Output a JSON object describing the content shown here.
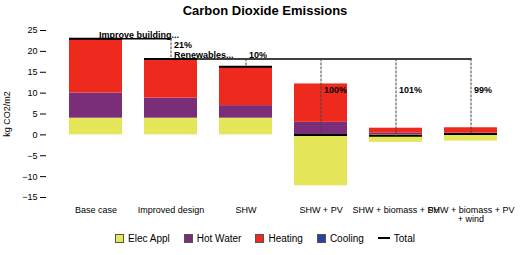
{
  "chart_data": {
    "type": "bar",
    "title": "Carbon Dioxide Emissions",
    "y_label": "kg CO2/m2",
    "categories": [
      "Base case",
      "Improved design",
      "SHW",
      "SHW + PV",
      "SHW + biomass + PV",
      "SHW + biomass + PV + wind"
    ],
    "stacked": true,
    "grid": false,
    "legend": "bottom",
    "ylim": [
      -15,
      25
    ],
    "yticks": [
      -15,
      -10,
      -5,
      0,
      5,
      10,
      15,
      20,
      25
    ],
    "series": [
      {
        "name": "Elec Appl",
        "color": "#e6e65a",
        "values": [
          4,
          4,
          4,
          -12.2,
          -1.8,
          -1.5
        ]
      },
      {
        "name": "Hot Water",
        "color": "#7a2d78",
        "values": [
          6,
          4.8,
          3,
          3,
          0.4,
          0.4
        ]
      },
      {
        "name": "Heating",
        "color": "#ee2a1e",
        "values": [
          13,
          9.4,
          9.3,
          9.2,
          1.2,
          1.3
        ]
      },
      {
        "name": "Cooling",
        "color": "#2a3f9f",
        "values": [
          0,
          0,
          0,
          0,
          0,
          0
        ]
      },
      {
        "name": "Total",
        "color": "#000000",
        "type": "scatter",
        "marker": "dash",
        "values": [
          23,
          18.2,
          16.3,
          0,
          -0.2,
          0.2
        ]
      }
    ],
    "annotations": [
      {
        "text": "Improve building...",
        "x": "Base case",
        "y": 23.3
      },
      {
        "text": "Renewables...",
        "x": "Improved design",
        "y": 18.4
      },
      {
        "text": "21%",
        "x": "Improved design",
        "y": 20.8
      },
      {
        "text": "10%",
        "x": "SHW",
        "y": 18.4
      },
      {
        "text": "100%",
        "x": "SHW + PV",
        "y": 10
      },
      {
        "text": "101%",
        "x": "SHW + biomass + PV",
        "y": 10
      },
      {
        "text": "99%",
        "x": "SHW + biomass + PV + wind",
        "y": 10
      }
    ]
  }
}
